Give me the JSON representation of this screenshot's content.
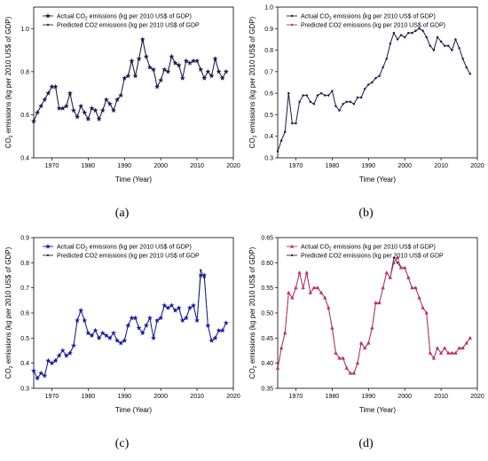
{
  "chart_data": [
    {
      "panel": "(a)",
      "type": "line",
      "xlabel": "Time (Year)",
      "ylabel": "CO2 emissions (kg per 2010 US$ of GDP)",
      "xlim": [
        1965,
        2020
      ],
      "ylim": [
        0.4,
        1.1
      ],
      "xticks": [
        1970,
        1980,
        1990,
        2000,
        2010,
        2020
      ],
      "yticks": [
        0.4,
        0.6,
        0.8,
        1.0
      ],
      "yticklabels": [
        "0.4",
        "0.6",
        "0.8",
        "1.0"
      ],
      "legend_position": "top-left",
      "x": [
        1965,
        1966,
        1967,
        1968,
        1969,
        1970,
        1971,
        1972,
        1973,
        1974,
        1975,
        1976,
        1977,
        1978,
        1979,
        1980,
        1981,
        1982,
        1983,
        1984,
        1985,
        1986,
        1987,
        1988,
        1989,
        1990,
        1991,
        1992,
        1993,
        1994,
        1995,
        1996,
        1997,
        1998,
        1999,
        2000,
        2001,
        2002,
        2003,
        2004,
        2005,
        2006,
        2007,
        2008,
        2009,
        2010,
        2011,
        2012,
        2013,
        2014,
        2015,
        2016,
        2017,
        2018
      ],
      "series": [
        {
          "name": "Actual CO2 emissions (kg per 2010 US$ of GDP)",
          "color": "#1a1a4e",
          "marker": "star",
          "values": [
            0.57,
            0.61,
            0.64,
            0.67,
            0.7,
            0.73,
            0.73,
            0.63,
            0.63,
            0.64,
            0.7,
            0.62,
            0.59,
            0.64,
            0.61,
            0.58,
            0.63,
            0.62,
            0.58,
            0.62,
            0.67,
            0.65,
            0.62,
            0.67,
            0.69,
            0.77,
            0.78,
            0.85,
            0.78,
            0.86,
            0.95,
            0.87,
            0.82,
            0.81,
            0.73,
            0.76,
            0.81,
            0.8,
            0.87,
            0.84,
            0.83,
            0.77,
            0.85,
            0.84,
            0.85,
            0.85,
            0.81,
            0.77,
            0.8,
            0.78,
            0.86,
            0.8,
            0.77,
            0.8
          ]
        },
        {
          "name": "Predicted CO2 emissions (kg per 2010 US$ of GDP",
          "color": "#2a2a2a",
          "marker": "dot",
          "values": [
            0.57,
            0.61,
            0.64,
            0.67,
            0.7,
            0.73,
            0.73,
            0.63,
            0.63,
            0.64,
            0.7,
            0.62,
            0.59,
            0.64,
            0.61,
            0.58,
            0.63,
            0.62,
            0.58,
            0.62,
            0.67,
            0.65,
            0.62,
            0.67,
            0.69,
            0.77,
            0.78,
            0.85,
            0.78,
            0.86,
            0.95,
            0.87,
            0.82,
            0.81,
            0.73,
            0.76,
            0.81,
            0.8,
            0.87,
            0.84,
            0.83,
            0.77,
            0.85,
            0.84,
            0.85,
            0.85,
            0.81,
            0.77,
            0.8,
            0.78,
            0.86,
            0.8,
            0.77,
            0.8
          ]
        }
      ]
    },
    {
      "panel": "(b)",
      "type": "line",
      "xlabel": "Time (Year)",
      "ylabel": "CO2 emissions (kg per 2010 US$ of GDP)",
      "xlim": [
        1965,
        2020
      ],
      "ylim": [
        0.3,
        1.0
      ],
      "xticks": [
        1970,
        1980,
        1990,
        2000,
        2010,
        2020
      ],
      "yticks": [
        0.3,
        0.4,
        0.5,
        0.6,
        0.7,
        0.8,
        0.9,
        1.0
      ],
      "yticklabels": [
        "0.3",
        "0.4",
        "0.5",
        "0.6",
        "0.7",
        "0.8",
        "0.9",
        "1.0"
      ],
      "legend_position": "top-left",
      "x": [
        1965,
        1966,
        1967,
        1968,
        1969,
        1970,
        1971,
        1972,
        1973,
        1974,
        1975,
        1976,
        1977,
        1978,
        1979,
        1980,
        1981,
        1982,
        1983,
        1984,
        1985,
        1986,
        1987,
        1988,
        1989,
        1990,
        1991,
        1992,
        1993,
        1994,
        1995,
        1996,
        1997,
        1998,
        1999,
        2000,
        2001,
        2002,
        2003,
        2004,
        2005,
        2006,
        2007,
        2008,
        2009,
        2010,
        2011,
        2012,
        2013,
        2014,
        2015,
        2016,
        2017,
        2018
      ],
      "series": [
        {
          "name": "Actual CO2 emissions (kg per 2010 US$ of GDP)",
          "color": "#1a1a4e",
          "marker": "dot",
          "values": [
            0.33,
            0.38,
            0.42,
            0.6,
            0.46,
            0.46,
            0.56,
            0.59,
            0.59,
            0.56,
            0.55,
            0.59,
            0.6,
            0.59,
            0.59,
            0.61,
            0.54,
            0.52,
            0.55,
            0.56,
            0.56,
            0.55,
            0.58,
            0.58,
            0.62,
            0.64,
            0.65,
            0.67,
            0.68,
            0.72,
            0.76,
            0.83,
            0.88,
            0.85,
            0.87,
            0.86,
            0.88,
            0.88,
            0.89,
            0.9,
            0.89,
            0.86,
            0.82,
            0.8,
            0.86,
            0.84,
            0.82,
            0.82,
            0.8,
            0.85,
            0.81,
            0.76,
            0.72,
            0.69
          ]
        },
        {
          "name": "Predicted CO2 emissions (kg per 2010 US$ of GDP)",
          "color": "#c0306a",
          "marker": "dot",
          "values": [
            0.33,
            0.38,
            0.42,
            0.6,
            0.46,
            0.46,
            0.56,
            0.59,
            0.59,
            0.56,
            0.55,
            0.59,
            0.6,
            0.59,
            0.59,
            0.61,
            0.54,
            0.52,
            0.55,
            0.56,
            0.56,
            0.55,
            0.58,
            0.58,
            0.62,
            0.64,
            0.65,
            0.67,
            0.68,
            0.72,
            0.76,
            0.83,
            0.88,
            0.85,
            0.87,
            0.86,
            0.88,
            0.88,
            0.89,
            0.9,
            0.89,
            0.86,
            0.82,
            0.8,
            0.86,
            0.84,
            0.82,
            0.82,
            0.8,
            0.85,
            0.81,
            0.76,
            0.72,
            0.69
          ]
        }
      ]
    },
    {
      "panel": "(c)",
      "type": "line",
      "xlabel": "Time (Year)",
      "ylabel": "CO2 emissions (kg per 2010 US$ of GDP)",
      "xlim": [
        1965,
        2020
      ],
      "ylim": [
        0.3,
        0.9
      ],
      "xticks": [
        1970,
        1980,
        1990,
        2000,
        2010,
        2020
      ],
      "yticks": [
        0.3,
        0.4,
        0.5,
        0.6,
        0.7,
        0.8,
        0.9
      ],
      "yticklabels": [
        "0.3",
        "0.4",
        "0.5",
        "0.6",
        "0.7",
        "0.8",
        "0.9"
      ],
      "legend_position": "top-left",
      "x": [
        1965,
        1966,
        1967,
        1968,
        1969,
        1970,
        1971,
        1972,
        1973,
        1974,
        1975,
        1976,
        1977,
        1978,
        1979,
        1980,
        1981,
        1982,
        1983,
        1984,
        1985,
        1986,
        1987,
        1988,
        1989,
        1990,
        1991,
        1992,
        1993,
        1994,
        1995,
        1996,
        1997,
        1998,
        1999,
        2000,
        2001,
        2002,
        2003,
        2004,
        2005,
        2006,
        2007,
        2008,
        2009,
        2010,
        2011,
        2012,
        2013,
        2014,
        2015,
        2016,
        2017,
        2018
      ],
      "series": [
        {
          "name": "Actual CO2 emissions (kg per 2010 US$ of GDP)",
          "color": "#1a1aa0",
          "marker": "star",
          "values": [
            0.37,
            0.34,
            0.36,
            0.35,
            0.41,
            0.4,
            0.41,
            0.43,
            0.45,
            0.43,
            0.44,
            0.47,
            0.57,
            0.61,
            0.57,
            0.52,
            0.51,
            0.53,
            0.5,
            0.52,
            0.51,
            0.5,
            0.52,
            0.49,
            0.48,
            0.49,
            0.55,
            0.58,
            0.58,
            0.54,
            0.52,
            0.55,
            0.58,
            0.5,
            0.57,
            0.58,
            0.63,
            0.62,
            0.63,
            0.61,
            0.62,
            0.57,
            0.58,
            0.62,
            0.63,
            0.57,
            0.75,
            0.75,
            0.55,
            0.49,
            0.5,
            0.53,
            0.53,
            0.56
          ]
        },
        {
          "name": "Predicted CO2 emissions (kg per 2010 US$ of GDP",
          "color": "#2a2a2a",
          "marker": "dot",
          "values": [
            0.37,
            0.34,
            0.36,
            0.35,
            0.41,
            0.4,
            0.41,
            0.43,
            0.45,
            0.43,
            0.44,
            0.47,
            0.57,
            0.61,
            0.57,
            0.52,
            0.51,
            0.53,
            0.5,
            0.52,
            0.51,
            0.5,
            0.52,
            0.49,
            0.48,
            0.49,
            0.55,
            0.58,
            0.58,
            0.54,
            0.52,
            0.55,
            0.58,
            0.5,
            0.57,
            0.58,
            0.63,
            0.62,
            0.63,
            0.61,
            0.62,
            0.57,
            0.58,
            0.62,
            0.63,
            0.57,
            0.77,
            0.74,
            0.55,
            0.49,
            0.5,
            0.53,
            0.53,
            0.56
          ]
        }
      ]
    },
    {
      "panel": "(d)",
      "type": "line",
      "xlabel": "Time (Year)",
      "ylabel": "CO2 emissions (kg per 2010 US$ of GDP)",
      "xlim": [
        1965,
        2020
      ],
      "ylim": [
        0.35,
        0.65
      ],
      "xticks": [
        1970,
        1980,
        1990,
        2000,
        2010,
        2020
      ],
      "yticks": [
        0.35,
        0.4,
        0.45,
        0.5,
        0.55,
        0.6,
        0.65
      ],
      "yticklabels": [
        "0.35",
        "0.40",
        "0.45",
        "0.50",
        "0.55",
        "0.60",
        "0.65"
      ],
      "legend_position": "top-left",
      "x": [
        1965,
        1966,
        1967,
        1968,
        1969,
        1970,
        1971,
        1972,
        1973,
        1974,
        1975,
        1976,
        1977,
        1978,
        1979,
        1980,
        1981,
        1982,
        1983,
        1984,
        1985,
        1986,
        1987,
        1988,
        1989,
        1990,
        1991,
        1992,
        1993,
        1994,
        1995,
        1996,
        1997,
        1998,
        1999,
        2000,
        2001,
        2002,
        2003,
        2004,
        2005,
        2006,
        2007,
        2008,
        2009,
        2010,
        2011,
        2012,
        2013,
        2014,
        2015,
        2016,
        2017,
        2018
      ],
      "series": [
        {
          "name": "Actual CO2 emissions (kg per 2010 US$ of GDP)",
          "color": "#c0306a",
          "marker": "tri",
          "values": [
            0.39,
            0.43,
            0.46,
            0.54,
            0.53,
            0.55,
            0.58,
            0.55,
            0.58,
            0.54,
            0.55,
            0.55,
            0.54,
            0.53,
            0.51,
            0.47,
            0.42,
            0.41,
            0.41,
            0.39,
            0.38,
            0.38,
            0.4,
            0.44,
            0.43,
            0.44,
            0.47,
            0.52,
            0.52,
            0.55,
            0.58,
            0.57,
            0.6,
            0.61,
            0.59,
            0.59,
            0.57,
            0.55,
            0.55,
            0.53,
            0.51,
            0.5,
            0.42,
            0.41,
            0.43,
            0.42,
            0.43,
            0.42,
            0.42,
            0.42,
            0.43,
            0.43,
            0.44,
            0.45
          ]
        },
        {
          "name": "Predicted CO2 emissions (kg per 2010 US$ of GDP",
          "color": "#2a2a2a",
          "marker": "dot",
          "values": [
            0.39,
            0.43,
            0.46,
            0.54,
            0.53,
            0.55,
            0.58,
            0.55,
            0.58,
            0.54,
            0.55,
            0.55,
            0.54,
            0.53,
            0.51,
            0.47,
            0.42,
            0.41,
            0.41,
            0.39,
            0.38,
            0.38,
            0.4,
            0.44,
            0.43,
            0.44,
            0.47,
            0.52,
            0.52,
            0.55,
            0.58,
            0.57,
            0.61,
            0.6,
            0.59,
            0.59,
            0.57,
            0.55,
            0.55,
            0.53,
            0.51,
            0.5,
            0.42,
            0.41,
            0.43,
            0.42,
            0.43,
            0.42,
            0.42,
            0.42,
            0.43,
            0.43,
            0.44,
            0.45
          ]
        }
      ]
    }
  ]
}
